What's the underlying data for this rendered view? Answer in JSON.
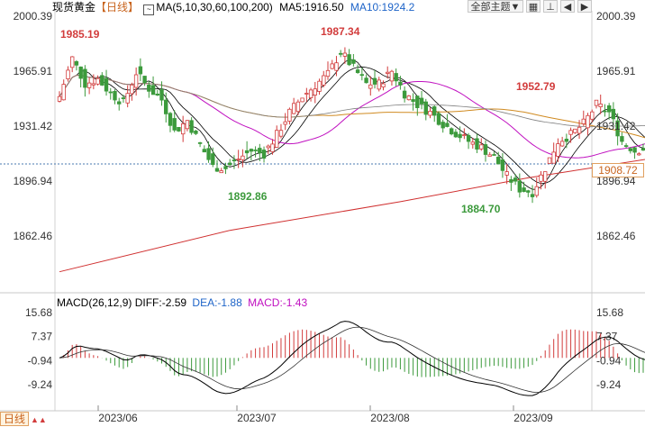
{
  "header": {
    "symbol": "现货黄金",
    "period": "【日线】",
    "ma_label": "MA(5,10,30,60,100,200)",
    "ma5": "MA5:1916.50",
    "ma10": "MA10:1924.2",
    "theme_button": "全部主题▼",
    "icons": [
      "grid-icon",
      "pin-icon",
      "arrow-left-icon",
      "arrow-right-icon"
    ]
  },
  "footer": {
    "label": "日线",
    "arrows": "▲▲"
  },
  "price_box": "1908.72",
  "macd_header": {
    "name": "MACD(26,12,9)",
    "diff": "DIFF:-2.59",
    "dea": "DEA:-1.88",
    "macd": "MACD:-1.43"
  },
  "colors": {
    "up": "#d23c3c",
    "down": "#3c9a3c",
    "ma5": "#000000",
    "ma10": "#000000",
    "ma30": "#c010c0",
    "ma60": "#d08a20",
    "ma100": "#808080",
    "ma200": "#d03030",
    "annot_high": "#d23c3c",
    "annot_low": "#3c9a3c",
    "accent": "#1e64c8"
  },
  "chart_data": [
    {
      "type": "candlestick",
      "yticks": [
        2000.39,
        1965.91,
        1931.42,
        1896.94,
        1862.46
      ],
      "xticks": [
        "2023/06",
        "2023/07",
        "2023/08",
        "2023/09"
      ],
      "ylim": [
        1846,
        2000.39
      ],
      "last_price": 1908.72,
      "ma_periods": [
        5,
        10,
        30,
        60,
        100,
        200
      ],
      "annotations": [
        {
          "text": "1985.19",
          "type": "high"
        },
        {
          "text": "1987.34",
          "type": "high"
        },
        {
          "text": "1952.79",
          "type": "high"
        },
        {
          "text": "1892.86",
          "type": "low"
        },
        {
          "text": "1884.70",
          "type": "low"
        }
      ]
    },
    {
      "type": "bar",
      "yticks": [
        15.68,
        7.37,
        -0.94,
        -9.24
      ],
      "ylim": [
        -15,
        18
      ],
      "series_names": [
        "DIFF",
        "DEA",
        "MACD"
      ],
      "last": {
        "diff": -2.59,
        "dea": -1.88,
        "macd": -1.43
      }
    }
  ]
}
